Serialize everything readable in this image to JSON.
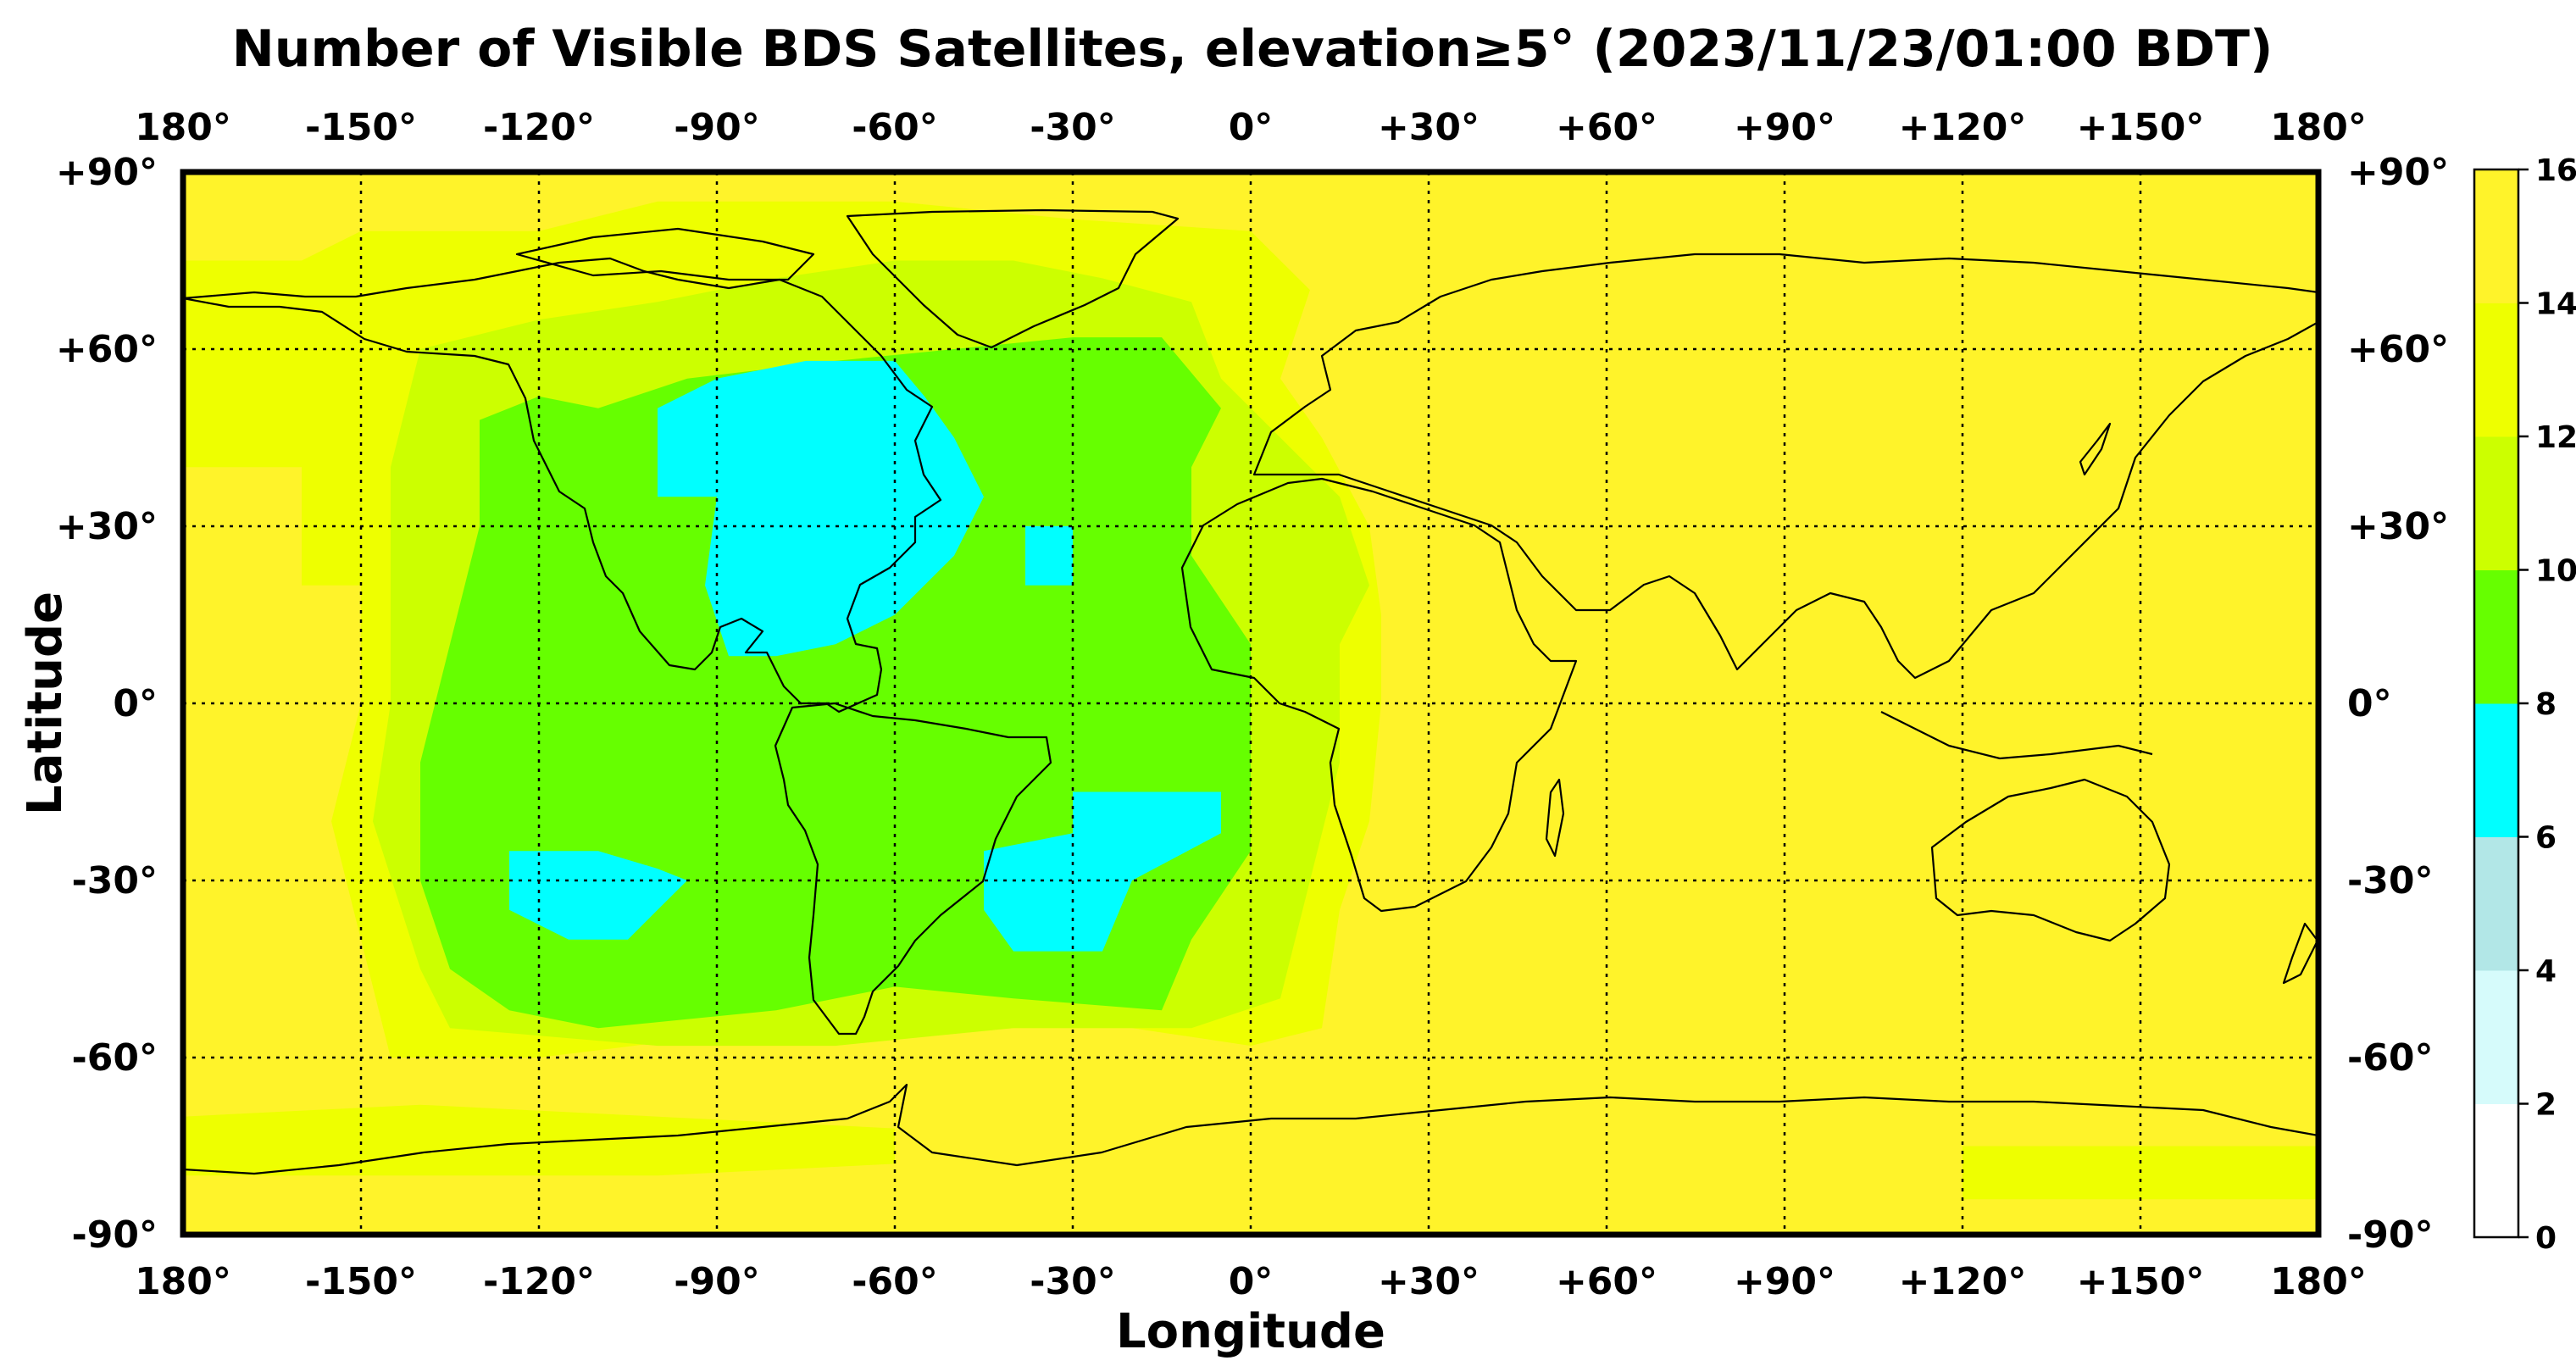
{
  "title": "Number of Visible BDS Satellites, elevation≥5° (2023/11/23/01:00 BDT)",
  "xlabel": "Longitude",
  "ylabel": "Latitude",
  "lon_ticks": [
    "180°",
    "-150°",
    "-120°",
    "-90°",
    "-60°",
    "-30°",
    "0°",
    "+30°",
    "+60°",
    "+90°",
    "+120°",
    "+150°",
    "180°"
  ],
  "lat_ticks": [
    "+90°",
    "+60°",
    "+30°",
    "0°",
    "-30°",
    "-60°",
    "-90°"
  ],
  "colorbar_ticks": [
    "0",
    "2",
    "4",
    "6",
    "8",
    "10",
    "12",
    "14",
    "16"
  ],
  "colors": {
    "levels": [
      "#ffffff",
      "#d6fbfb",
      "#b2e7e7",
      "#00ffff",
      "#66ff00",
      "#ccff00",
      "#eeff00",
      "#fff32a"
    ],
    "coastline": "#000000",
    "grid": "#000000"
  },
  "chart_data": {
    "type": "heatmap",
    "title": "Number of Visible BDS Satellites, elevation≥5° (2023/11/23/01:00 BDT)",
    "xlabel": "Longitude",
    "ylabel": "Latitude",
    "xlim": [
      -180,
      180
    ],
    "ylim": [
      -90,
      90
    ],
    "grid": true,
    "colorbar_range": [
      0,
      16
    ],
    "colorbar_levels": [
      0,
      2,
      4,
      6,
      8,
      10,
      12,
      14,
      16
    ],
    "background_value": 15,
    "regions": [
      {
        "value": 13,
        "polygon": [
          [
            -180,
            70
          ],
          [
            -180,
            40
          ],
          [
            -160,
            40
          ],
          [
            -160,
            20
          ],
          [
            -150,
            20
          ],
          [
            -150,
            0
          ],
          [
            -155,
            -20
          ],
          [
            -150,
            -40
          ],
          [
            -145,
            -60
          ],
          [
            -120,
            -60
          ],
          [
            -80,
            -55
          ],
          [
            -40,
            -55
          ],
          [
            -20,
            -55
          ],
          [
            0,
            -58
          ],
          [
            12,
            -55
          ],
          [
            15,
            -35
          ],
          [
            20,
            -20
          ],
          [
            22,
            0
          ],
          [
            22,
            15
          ],
          [
            20,
            30
          ],
          [
            12,
            45
          ],
          [
            5,
            55
          ],
          [
            10,
            70
          ],
          [
            0,
            80
          ],
          [
            -30,
            82
          ],
          [
            -60,
            85
          ],
          [
            -100,
            85
          ],
          [
            -120,
            80
          ],
          [
            -150,
            80
          ],
          [
            -160,
            75
          ],
          [
            -180,
            75
          ]
        ]
      },
      {
        "value": 13,
        "polygon": [
          [
            -180,
            -70
          ],
          [
            -180,
            -80
          ],
          [
            -100,
            -80
          ],
          [
            -60,
            -78
          ],
          [
            -60,
            -72
          ],
          [
            -100,
            -70
          ],
          [
            -140,
            -68
          ]
        ]
      },
      {
        "value": 13,
        "polygon": [
          [
            120,
            -75
          ],
          [
            120,
            -84
          ],
          [
            180,
            -84
          ],
          [
            180,
            -75
          ]
        ]
      },
      {
        "value": 11,
        "polygon": [
          [
            -140,
            60
          ],
          [
            -145,
            40
          ],
          [
            -145,
            0
          ],
          [
            -148,
            -20
          ],
          [
            -140,
            -45
          ],
          [
            -135,
            -55
          ],
          [
            -100,
            -58
          ],
          [
            -70,
            -58
          ],
          [
            -40,
            -55
          ],
          [
            -10,
            -55
          ],
          [
            5,
            -50
          ],
          [
            10,
            -30
          ],
          [
            15,
            -10
          ],
          [
            15,
            10
          ],
          [
            20,
            20
          ],
          [
            15,
            35
          ],
          [
            5,
            45
          ],
          [
            -5,
            55
          ],
          [
            -10,
            68
          ],
          [
            -25,
            72
          ],
          [
            -40,
            75
          ],
          [
            -60,
            75
          ],
          [
            -80,
            72
          ],
          [
            -100,
            68
          ],
          [
            -120,
            65
          ]
        ]
      },
      {
        "value": 9,
        "polygon": [
          [
            -130,
            48
          ],
          [
            -130,
            30
          ],
          [
            -135,
            10
          ],
          [
            -140,
            -10
          ],
          [
            -140,
            -30
          ],
          [
            -135,
            -45
          ],
          [
            -125,
            -52
          ],
          [
            -110,
            -55
          ],
          [
            -80,
            -52
          ],
          [
            -60,
            -48
          ],
          [
            -40,
            -50
          ],
          [
            -15,
            -52
          ],
          [
            -10,
            -40
          ],
          [
            0,
            -25
          ],
          [
            0,
            -5
          ],
          [
            0,
            10
          ],
          [
            -10,
            25
          ],
          [
            -10,
            40
          ],
          [
            -5,
            50
          ],
          [
            -15,
            62
          ],
          [
            -30,
            62
          ],
          [
            -50,
            60
          ],
          [
            -70,
            58
          ],
          [
            -95,
            55
          ],
          [
            -110,
            50
          ],
          [
            -120,
            52
          ]
        ]
      },
      {
        "value": 7,
        "polygon": [
          [
            -100,
            50
          ],
          [
            -100,
            35
          ],
          [
            -90,
            35
          ],
          [
            -92,
            20
          ],
          [
            -88,
            8
          ],
          [
            -80,
            8
          ],
          [
            -70,
            10
          ],
          [
            -60,
            15
          ],
          [
            -50,
            25
          ],
          [
            -45,
            35
          ],
          [
            -50,
            45
          ],
          [
            -55,
            52
          ],
          [
            -60,
            58
          ],
          [
            -75,
            58
          ],
          [
            -90,
            55
          ]
        ]
      },
      {
        "value": 7,
        "polygon": [
          [
            -38,
            30
          ],
          [
            -38,
            20
          ],
          [
            -30,
            20
          ],
          [
            -30,
            30
          ]
        ]
      },
      {
        "value": 7,
        "polygon": [
          [
            -135,
            -15
          ],
          [
            -135,
            -22
          ],
          [
            -125,
            -22
          ],
          [
            -125,
            -25
          ],
          [
            -110,
            -25
          ],
          [
            -100,
            -28
          ],
          [
            -95,
            -30
          ],
          [
            -100,
            -35
          ],
          [
            -105,
            -40
          ],
          [
            -115,
            -40
          ],
          [
            -125,
            -35
          ],
          [
            -125,
            -22
          ],
          [
            -135,
            -22
          ]
        ]
      },
      {
        "value": 7,
        "polygon": [
          [
            -30,
            -15
          ],
          [
            -30,
            -22
          ],
          [
            -45,
            -25
          ],
          [
            -45,
            -35
          ],
          [
            -40,
            -42
          ],
          [
            -25,
            -42
          ],
          [
            -20,
            -30
          ],
          [
            -5,
            -22
          ],
          [
            -5,
            -15
          ]
        ]
      },
      {
        "value": 11,
        "polygon": [
          [
            5,
            30
          ],
          [
            5,
            18
          ],
          [
            15,
            18
          ],
          [
            15,
            30
          ]
        ]
      }
    ]
  }
}
